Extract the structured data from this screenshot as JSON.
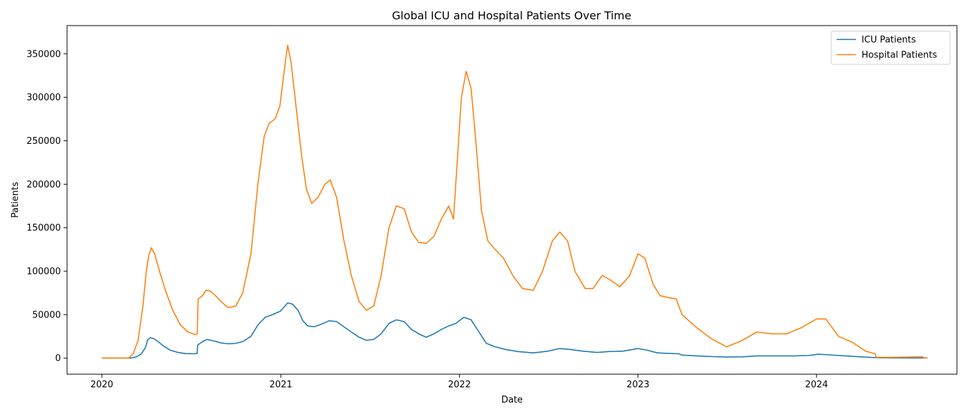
{
  "chart_data": {
    "type": "line",
    "title": "Global ICU and Hospital Patients Over Time",
    "xlabel": "Date",
    "ylabel": "Patients",
    "xlim": [
      "2019-10-22",
      "2024-10-14"
    ],
    "ylim": [
      -18500,
      382500
    ],
    "x_ticks": [
      {
        "label": "2020",
        "date": "2020-01-01"
      },
      {
        "label": "2021",
        "date": "2021-01-01"
      },
      {
        "label": "2022",
        "date": "2022-01-01"
      },
      {
        "label": "2023",
        "date": "2023-01-01"
      },
      {
        "label": "2024",
        "date": "2024-01-01"
      }
    ],
    "y_ticks": [
      0,
      50000,
      100000,
      150000,
      200000,
      250000,
      300000,
      350000
    ],
    "grid": false,
    "legend_position": "top-right",
    "series": [
      {
        "name": "ICU Patients",
        "color": "#1f77b4",
        "points": [
          [
            "2020-01-01",
            0
          ],
          [
            "2020-03-01",
            0
          ],
          [
            "2020-03-12",
            1500
          ],
          [
            "2020-03-22",
            5000
          ],
          [
            "2020-03-30",
            12000
          ],
          [
            "2020-04-04",
            21000
          ],
          [
            "2020-04-09",
            23500
          ],
          [
            "2020-04-16",
            22500
          ],
          [
            "2020-04-25",
            19000
          ],
          [
            "2020-05-06",
            14000
          ],
          [
            "2020-05-20",
            9000
          ],
          [
            "2020-06-05",
            6500
          ],
          [
            "2020-06-20",
            5200
          ],
          [
            "2020-07-10",
            5000
          ],
          [
            "2020-07-14",
            5500
          ],
          [
            "2020-07-15",
            15000
          ],
          [
            "2020-07-25",
            19000
          ],
          [
            "2020-08-03",
            21500
          ],
          [
            "2020-08-15",
            20000
          ],
          [
            "2020-09-01",
            17500
          ],
          [
            "2020-09-15",
            16500
          ],
          [
            "2020-10-01",
            17000
          ],
          [
            "2020-10-15",
            19000
          ],
          [
            "2020-11-01",
            25000
          ],
          [
            "2020-11-15",
            38000
          ],
          [
            "2020-11-30",
            47000
          ],
          [
            "2020-12-15",
            50000
          ],
          [
            "2020-12-31",
            54000
          ],
          [
            "2021-01-15",
            63500
          ],
          [
            "2021-01-25",
            62000
          ],
          [
            "2021-02-05",
            55000
          ],
          [
            "2021-02-15",
            43000
          ],
          [
            "2021-02-25",
            37000
          ],
          [
            "2021-03-10",
            36000
          ],
          [
            "2021-03-25",
            39000
          ],
          [
            "2021-04-10",
            43000
          ],
          [
            "2021-04-25",
            42000
          ],
          [
            "2021-05-10",
            36000
          ],
          [
            "2021-05-25",
            30000
          ],
          [
            "2021-06-10",
            24000
          ],
          [
            "2021-06-25",
            20500
          ],
          [
            "2021-07-10",
            21500
          ],
          [
            "2021-07-25",
            28000
          ],
          [
            "2021-08-10",
            40000
          ],
          [
            "2021-08-25",
            44000
          ],
          [
            "2021-09-10",
            42000
          ],
          [
            "2021-09-25",
            33000
          ],
          [
            "2021-10-10",
            28000
          ],
          [
            "2021-10-25",
            24000
          ],
          [
            "2021-11-10",
            28000
          ],
          [
            "2021-11-25",
            33000
          ],
          [
            "2021-12-10",
            37000
          ],
          [
            "2021-12-25",
            40000
          ],
          [
            "2022-01-10",
            47000
          ],
          [
            "2022-01-25",
            44000
          ],
          [
            "2022-02-10",
            30000
          ],
          [
            "2022-02-25",
            17000
          ],
          [
            "2022-03-15",
            13000
          ],
          [
            "2022-04-05",
            10000
          ],
          [
            "2022-05-01",
            7500
          ],
          [
            "2022-06-01",
            6000
          ],
          [
            "2022-07-01",
            8000
          ],
          [
            "2022-07-25",
            11000
          ],
          [
            "2022-08-15",
            10000
          ],
          [
            "2022-09-10",
            8000
          ],
          [
            "2022-10-10",
            6500
          ],
          [
            "2022-11-01",
            7500
          ],
          [
            "2022-12-01",
            8000
          ],
          [
            "2023-01-01",
            11000
          ],
          [
            "2023-01-20",
            9000
          ],
          [
            "2023-02-10",
            6000
          ],
          [
            "2023-03-01",
            5500
          ],
          [
            "2023-03-25",
            5000
          ],
          [
            "2023-04-01",
            3500
          ],
          [
            "2023-05-01",
            2500
          ],
          [
            "2023-06-01",
            1800
          ],
          [
            "2023-07-01",
            1200
          ],
          [
            "2023-08-01",
            1500
          ],
          [
            "2023-09-01",
            2500
          ],
          [
            "2023-10-01",
            2500
          ],
          [
            "2023-11-15",
            2500
          ],
          [
            "2023-12-15",
            3000
          ],
          [
            "2024-01-05",
            4500
          ],
          [
            "2024-01-25",
            3800
          ],
          [
            "2024-03-01",
            2500
          ],
          [
            "2024-04-01",
            1500
          ],
          [
            "2024-05-01",
            500
          ],
          [
            "2024-06-01",
            300
          ],
          [
            "2024-08-15",
            100
          ]
        ]
      },
      {
        "name": "Hospital Patients",
        "color": "#ff7f0e",
        "points": [
          [
            "2020-01-01",
            0
          ],
          [
            "2020-02-25",
            0
          ],
          [
            "2020-03-05",
            5000
          ],
          [
            "2020-03-15",
            20000
          ],
          [
            "2020-03-25",
            60000
          ],
          [
            "2020-04-01",
            100000
          ],
          [
            "2020-04-06",
            118000
          ],
          [
            "2020-04-11",
            127000
          ],
          [
            "2020-04-18",
            120000
          ],
          [
            "2020-04-28",
            100000
          ],
          [
            "2020-05-10",
            78000
          ],
          [
            "2020-05-25",
            55000
          ],
          [
            "2020-06-10",
            38000
          ],
          [
            "2020-06-25",
            30000
          ],
          [
            "2020-07-10",
            27000
          ],
          [
            "2020-07-14",
            28000
          ],
          [
            "2020-07-16",
            68000
          ],
          [
            "2020-07-25",
            72000
          ],
          [
            "2020-08-01",
            78000
          ],
          [
            "2020-08-10",
            77000
          ],
          [
            "2020-08-20",
            72000
          ],
          [
            "2020-09-01",
            65000
          ],
          [
            "2020-09-15",
            58000
          ],
          [
            "2020-10-01",
            60000
          ],
          [
            "2020-10-15",
            75000
          ],
          [
            "2020-11-01",
            120000
          ],
          [
            "2020-11-15",
            200000
          ],
          [
            "2020-11-28",
            255000
          ],
          [
            "2020-12-08",
            270000
          ],
          [
            "2020-12-20",
            275000
          ],
          [
            "2020-12-30",
            290000
          ],
          [
            "2021-01-10",
            340000
          ],
          [
            "2021-01-15",
            360000
          ],
          [
            "2021-01-22",
            340000
          ],
          [
            "2021-02-01",
            290000
          ],
          [
            "2021-02-12",
            235000
          ],
          [
            "2021-02-22",
            195000
          ],
          [
            "2021-03-05",
            178000
          ],
          [
            "2021-03-18",
            185000
          ],
          [
            "2021-04-01",
            200000
          ],
          [
            "2021-04-12",
            205000
          ],
          [
            "2021-04-25",
            185000
          ],
          [
            "2021-05-10",
            135000
          ],
          [
            "2021-05-25",
            95000
          ],
          [
            "2021-06-10",
            65000
          ],
          [
            "2021-06-25",
            55000
          ],
          [
            "2021-07-10",
            60000
          ],
          [
            "2021-07-25",
            95000
          ],
          [
            "2021-08-10",
            150000
          ],
          [
            "2021-08-25",
            175000
          ],
          [
            "2021-09-10",
            172000
          ],
          [
            "2021-09-25",
            145000
          ],
          [
            "2021-10-10",
            133000
          ],
          [
            "2021-10-25",
            132000
          ],
          [
            "2021-11-10",
            140000
          ],
          [
            "2021-11-25",
            160000
          ],
          [
            "2021-12-10",
            175000
          ],
          [
            "2021-12-20",
            160000
          ],
          [
            "2021-12-28",
            230000
          ],
          [
            "2022-01-05",
            300000
          ],
          [
            "2022-01-15",
            330000
          ],
          [
            "2022-01-25",
            310000
          ],
          [
            "2022-02-05",
            240000
          ],
          [
            "2022-02-15",
            170000
          ],
          [
            "2022-02-28",
            135000
          ],
          [
            "2022-03-15",
            125000
          ],
          [
            "2022-04-01",
            115000
          ],
          [
            "2022-04-20",
            95000
          ],
          [
            "2022-05-10",
            80000
          ],
          [
            "2022-06-01",
            78000
          ],
          [
            "2022-06-20",
            100000
          ],
          [
            "2022-07-10",
            135000
          ],
          [
            "2022-07-25",
            145000
          ],
          [
            "2022-08-10",
            135000
          ],
          [
            "2022-08-25",
            100000
          ],
          [
            "2022-09-15",
            80000
          ],
          [
            "2022-10-01",
            80000
          ],
          [
            "2022-10-20",
            95000
          ],
          [
            "2022-11-05",
            90000
          ],
          [
            "2022-11-25",
            82000
          ],
          [
            "2022-12-15",
            95000
          ],
          [
            "2023-01-01",
            120000
          ],
          [
            "2023-01-15",
            115000
          ],
          [
            "2023-02-01",
            85000
          ],
          [
            "2023-02-15",
            72000
          ],
          [
            "2023-03-01",
            70000
          ],
          [
            "2023-03-20",
            68000
          ],
          [
            "2023-04-01",
            50000
          ],
          [
            "2023-05-01",
            35000
          ],
          [
            "2023-06-01",
            22000
          ],
          [
            "2023-07-01",
            13000
          ],
          [
            "2023-08-01",
            20000
          ],
          [
            "2023-09-01",
            30000
          ],
          [
            "2023-10-01",
            28000
          ],
          [
            "2023-11-01",
            28000
          ],
          [
            "2023-12-01",
            35000
          ],
          [
            "2024-01-01",
            45000
          ],
          [
            "2024-01-20",
            45000
          ],
          [
            "2024-02-15",
            25000
          ],
          [
            "2024-03-15",
            18000
          ],
          [
            "2024-04-10",
            8000
          ],
          [
            "2024-04-30",
            5000
          ],
          [
            "2024-05-02",
            800
          ],
          [
            "2024-06-01",
            800
          ],
          [
            "2024-07-15",
            1200
          ],
          [
            "2024-08-05",
            1500
          ],
          [
            "2024-08-07",
            0
          ],
          [
            "2024-08-15",
            0
          ]
        ]
      }
    ]
  }
}
